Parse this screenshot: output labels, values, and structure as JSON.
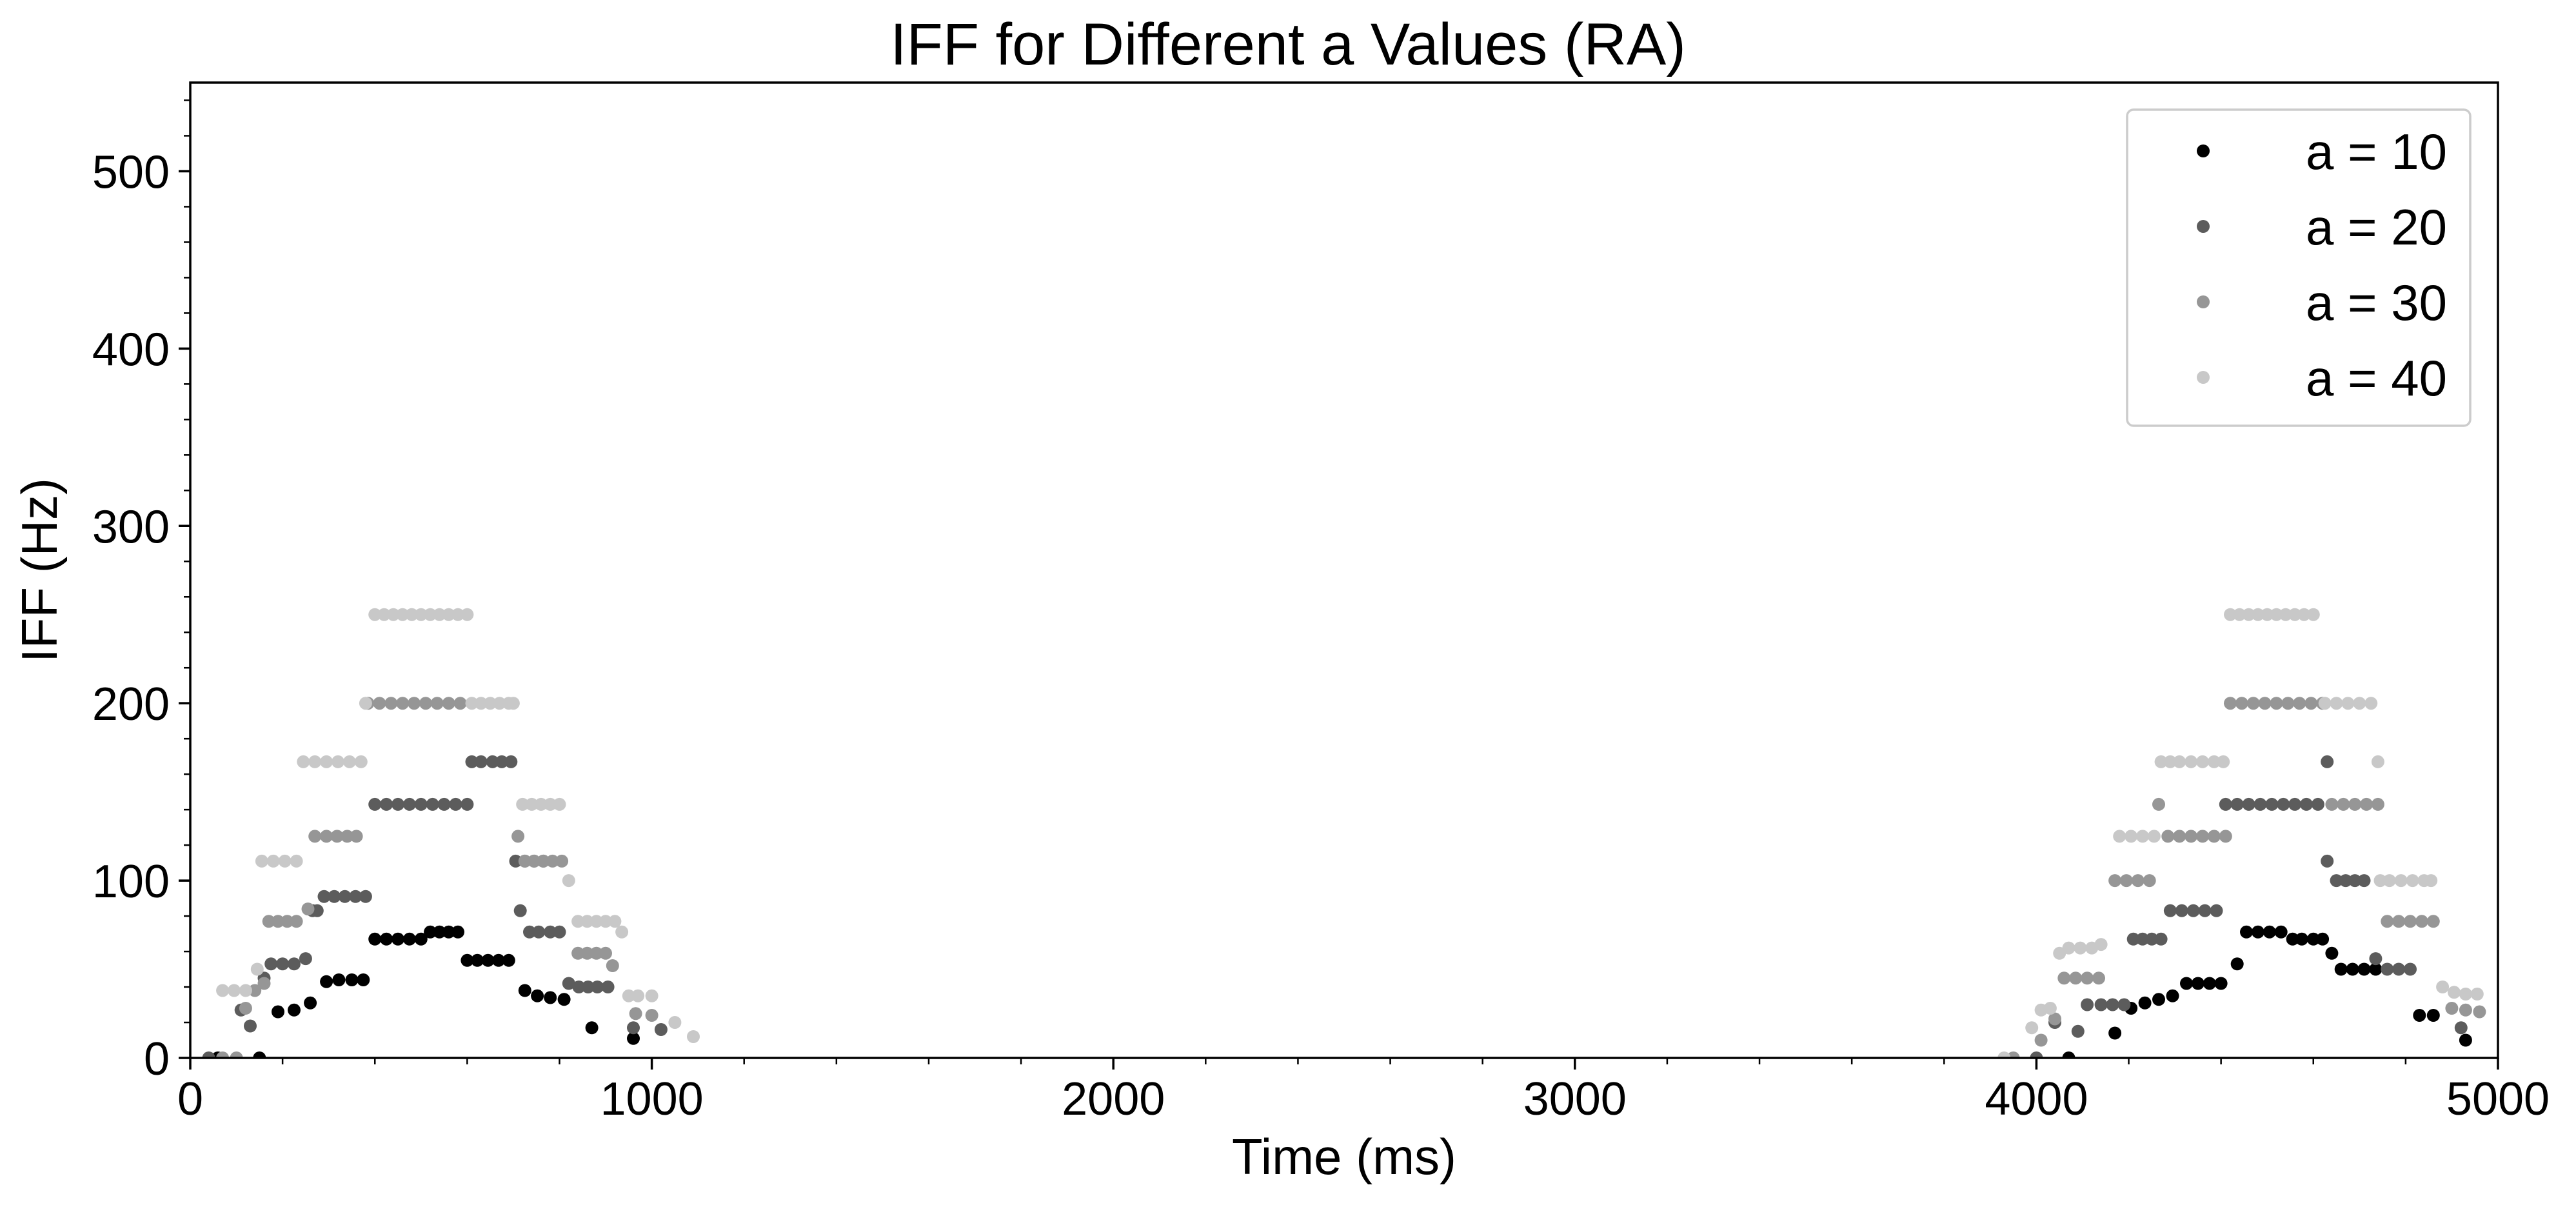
{
  "chart_data": {
    "type": "scatter",
    "title": "IFF for Different a Values (RA)",
    "xlabel": "Time (ms)",
    "ylabel": "IFF (Hz)",
    "xlim": [
      0,
      5000
    ],
    "ylim": [
      0,
      550
    ],
    "xticks": [
      0,
      1000,
      2000,
      3000,
      4000,
      5000
    ],
    "xtick_labels": [
      "0",
      "1000",
      "2000",
      "3000",
      "4000",
      "5000"
    ],
    "yticks": [
      0,
      100,
      200,
      300,
      400,
      500
    ],
    "ytick_labels": [
      "0",
      "100",
      "200",
      "300",
      "400",
      "500"
    ],
    "grid": false,
    "legend_position": "top-right",
    "series": [
      {
        "name": "a = 10",
        "color": "#000000",
        "points": [
          [
            60,
            0
          ],
          [
            150,
            0
          ],
          [
            190,
            26
          ],
          [
            225,
            27
          ],
          [
            260,
            31
          ],
          [
            295,
            43
          ],
          [
            322,
            44
          ],
          [
            350,
            44
          ],
          [
            375,
            44
          ],
          [
            400,
            67
          ],
          [
            425,
            67
          ],
          [
            450,
            67
          ],
          [
            475,
            67
          ],
          [
            500,
            67
          ],
          [
            520,
            71
          ],
          [
            540,
            71
          ],
          [
            560,
            71
          ],
          [
            580,
            71
          ],
          [
            600,
            55
          ],
          [
            622,
            55
          ],
          [
            645,
            55
          ],
          [
            668,
            55
          ],
          [
            690,
            55
          ],
          [
            725,
            38
          ],
          [
            752,
            35
          ],
          [
            780,
            34
          ],
          [
            810,
            33
          ],
          [
            870,
            17
          ],
          [
            960,
            11
          ],
          [
            4070,
            0
          ],
          [
            4170,
            14
          ],
          [
            4205,
            28
          ],
          [
            4235,
            31
          ],
          [
            4265,
            33
          ],
          [
            4295,
            35
          ],
          [
            4325,
            42
          ],
          [
            4350,
            42
          ],
          [
            4375,
            42
          ],
          [
            4400,
            42
          ],
          [
            4435,
            53
          ],
          [
            4455,
            71
          ],
          [
            4480,
            71
          ],
          [
            4505,
            71
          ],
          [
            4530,
            71
          ],
          [
            4555,
            67
          ],
          [
            4575,
            67
          ],
          [
            4600,
            67
          ],
          [
            4620,
            67
          ],
          [
            4640,
            59
          ],
          [
            4660,
            50
          ],
          [
            4685,
            50
          ],
          [
            4710,
            50
          ],
          [
            4735,
            50
          ],
          [
            4830,
            24
          ],
          [
            4860,
            24
          ],
          [
            4930,
            10
          ]
        ]
      },
      {
        "name": "a = 20",
        "color": "#5c5c5c",
        "points": [
          [
            40,
            0
          ],
          [
            110,
            27
          ],
          [
            130,
            18
          ],
          [
            160,
            45
          ],
          [
            175,
            53
          ],
          [
            200,
            53
          ],
          [
            225,
            53
          ],
          [
            250,
            56
          ],
          [
            265,
            83
          ],
          [
            275,
            83
          ],
          [
            290,
            91
          ],
          [
            312,
            91
          ],
          [
            335,
            91
          ],
          [
            358,
            91
          ],
          [
            380,
            91
          ],
          [
            400,
            143
          ],
          [
            425,
            143
          ],
          [
            450,
            143
          ],
          [
            475,
            143
          ],
          [
            500,
            143
          ],
          [
            525,
            143
          ],
          [
            550,
            143
          ],
          [
            575,
            143
          ],
          [
            600,
            143
          ],
          [
            610,
            167
          ],
          [
            630,
            167
          ],
          [
            655,
            167
          ],
          [
            675,
            167
          ],
          [
            695,
            167
          ],
          [
            705,
            111
          ],
          [
            725,
            111
          ],
          [
            745,
            111
          ],
          [
            765,
            111
          ],
          [
            715,
            83
          ],
          [
            735,
            71
          ],
          [
            755,
            71
          ],
          [
            780,
            71
          ],
          [
            800,
            71
          ],
          [
            820,
            42
          ],
          [
            842,
            40
          ],
          [
            862,
            40
          ],
          [
            882,
            40
          ],
          [
            905,
            40
          ],
          [
            960,
            17
          ],
          [
            1020,
            16
          ],
          [
            4000,
            0
          ],
          [
            4040,
            20
          ],
          [
            4090,
            15
          ],
          [
            4110,
            30
          ],
          [
            4140,
            30
          ],
          [
            4165,
            30
          ],
          [
            4190,
            30
          ],
          [
            4210,
            67
          ],
          [
            4230,
            67
          ],
          [
            4250,
            67
          ],
          [
            4270,
            67
          ],
          [
            4290,
            83
          ],
          [
            4315,
            83
          ],
          [
            4340,
            83
          ],
          [
            4365,
            83
          ],
          [
            4390,
            83
          ],
          [
            4410,
            143
          ],
          [
            4435,
            143
          ],
          [
            4460,
            143
          ],
          [
            4485,
            143
          ],
          [
            4510,
            143
          ],
          [
            4535,
            143
          ],
          [
            4560,
            143
          ],
          [
            4585,
            143
          ],
          [
            4610,
            143
          ],
          [
            4630,
            167
          ],
          [
            4630,
            111
          ],
          [
            4650,
            100
          ],
          [
            4670,
            100
          ],
          [
            4690,
            100
          ],
          [
            4710,
            100
          ],
          [
            4735,
            56
          ],
          [
            4760,
            50
          ],
          [
            4785,
            50
          ],
          [
            4810,
            50
          ],
          [
            4920,
            17
          ]
        ]
      },
      {
        "name": "a = 30",
        "color": "#969696",
        "points": [
          [
            70,
            0
          ],
          [
            100,
            0
          ],
          [
            120,
            28
          ],
          [
            140,
            38
          ],
          [
            160,
            42
          ],
          [
            170,
            77
          ],
          [
            190,
            77
          ],
          [
            210,
            77
          ],
          [
            230,
            77
          ],
          [
            255,
            84
          ],
          [
            270,
            125
          ],
          [
            295,
            125
          ],
          [
            318,
            125
          ],
          [
            340,
            125
          ],
          [
            360,
            125
          ],
          [
            385,
            200
          ],
          [
            410,
            200
          ],
          [
            435,
            200
          ],
          [
            460,
            200
          ],
          [
            485,
            200
          ],
          [
            510,
            200
          ],
          [
            535,
            200
          ],
          [
            560,
            200
          ],
          [
            585,
            200
          ],
          [
            710,
            125
          ],
          [
            725,
            111
          ],
          [
            745,
            111
          ],
          [
            765,
            111
          ],
          [
            785,
            111
          ],
          [
            805,
            111
          ],
          [
            840,
            59
          ],
          [
            860,
            59
          ],
          [
            880,
            59
          ],
          [
            900,
            59
          ],
          [
            915,
            52
          ],
          [
            965,
            25
          ],
          [
            1000,
            24
          ],
          [
            3950,
            0
          ],
          [
            4010,
            10
          ],
          [
            4040,
            22
          ],
          [
            4060,
            45
          ],
          [
            4085,
            45
          ],
          [
            4110,
            45
          ],
          [
            4135,
            45
          ],
          [
            4170,
            100
          ],
          [
            4195,
            100
          ],
          [
            4220,
            100
          ],
          [
            4245,
            100
          ],
          [
            4265,
            143
          ],
          [
            4285,
            125
          ],
          [
            4310,
            125
          ],
          [
            4335,
            125
          ],
          [
            4360,
            125
          ],
          [
            4385,
            125
          ],
          [
            4410,
            125
          ],
          [
            4420,
            200
          ],
          [
            4445,
            200
          ],
          [
            4470,
            200
          ],
          [
            4495,
            200
          ],
          [
            4520,
            200
          ],
          [
            4545,
            200
          ],
          [
            4570,
            200
          ],
          [
            4595,
            200
          ],
          [
            4620,
            200
          ],
          [
            4640,
            143
          ],
          [
            4665,
            143
          ],
          [
            4690,
            143
          ],
          [
            4715,
            143
          ],
          [
            4740,
            143
          ],
          [
            4760,
            77
          ],
          [
            4785,
            77
          ],
          [
            4810,
            77
          ],
          [
            4835,
            77
          ],
          [
            4860,
            77
          ],
          [
            4900,
            28
          ],
          [
            4930,
            27
          ],
          [
            4960,
            26
          ]
        ]
      },
      {
        "name": "a = 40",
        "color": "#c8c8c8",
        "points": [
          [
            70,
            38
          ],
          [
            95,
            38
          ],
          [
            120,
            38
          ],
          [
            145,
            50
          ],
          [
            155,
            111
          ],
          [
            180,
            111
          ],
          [
            205,
            111
          ],
          [
            230,
            111
          ],
          [
            245,
            167
          ],
          [
            270,
            167
          ],
          [
            295,
            167
          ],
          [
            320,
            167
          ],
          [
            345,
            167
          ],
          [
            370,
            167
          ],
          [
            380,
            200
          ],
          [
            400,
            250
          ],
          [
            420,
            250
          ],
          [
            440,
            250
          ],
          [
            460,
            250
          ],
          [
            480,
            250
          ],
          [
            500,
            250
          ],
          [
            520,
            250
          ],
          [
            540,
            250
          ],
          [
            560,
            250
          ],
          [
            580,
            250
          ],
          [
            600,
            250
          ],
          [
            610,
            200
          ],
          [
            630,
            200
          ],
          [
            650,
            200
          ],
          [
            670,
            200
          ],
          [
            690,
            200
          ],
          [
            700,
            200
          ],
          [
            720,
            143
          ],
          [
            740,
            143
          ],
          [
            760,
            143
          ],
          [
            780,
            143
          ],
          [
            800,
            143
          ],
          [
            820,
            100
          ],
          [
            840,
            77
          ],
          [
            860,
            77
          ],
          [
            880,
            77
          ],
          [
            900,
            77
          ],
          [
            920,
            77
          ],
          [
            935,
            71
          ],
          [
            950,
            35
          ],
          [
            970,
            35
          ],
          [
            1000,
            35
          ],
          [
            1050,
            20
          ],
          [
            1090,
            12
          ],
          [
            3930,
            0
          ],
          [
            3990,
            17
          ],
          [
            4010,
            27
          ],
          [
            4030,
            28
          ],
          [
            4050,
            59
          ],
          [
            4070,
            62
          ],
          [
            4095,
            62
          ],
          [
            4120,
            62
          ],
          [
            4140,
            64
          ],
          [
            4180,
            125
          ],
          [
            4205,
            125
          ],
          [
            4230,
            125
          ],
          [
            4255,
            125
          ],
          [
            4270,
            167
          ],
          [
            4290,
            167
          ],
          [
            4310,
            167
          ],
          [
            4335,
            167
          ],
          [
            4360,
            167
          ],
          [
            4385,
            167
          ],
          [
            4405,
            167
          ],
          [
            4420,
            250
          ],
          [
            4440,
            250
          ],
          [
            4460,
            250
          ],
          [
            4480,
            250
          ],
          [
            4500,
            250
          ],
          [
            4520,
            250
          ],
          [
            4540,
            250
          ],
          [
            4560,
            250
          ],
          [
            4580,
            250
          ],
          [
            4600,
            250
          ],
          [
            4625,
            200
          ],
          [
            4650,
            200
          ],
          [
            4675,
            200
          ],
          [
            4700,
            200
          ],
          [
            4725,
            200
          ],
          [
            4740,
            167
          ],
          [
            4745,
            100
          ],
          [
            4765,
            100
          ],
          [
            4790,
            100
          ],
          [
            4815,
            100
          ],
          [
            4840,
            100
          ],
          [
            4855,
            100
          ],
          [
            4880,
            40
          ],
          [
            4905,
            37
          ],
          [
            4930,
            36
          ],
          [
            4955,
            36
          ]
        ]
      }
    ]
  }
}
